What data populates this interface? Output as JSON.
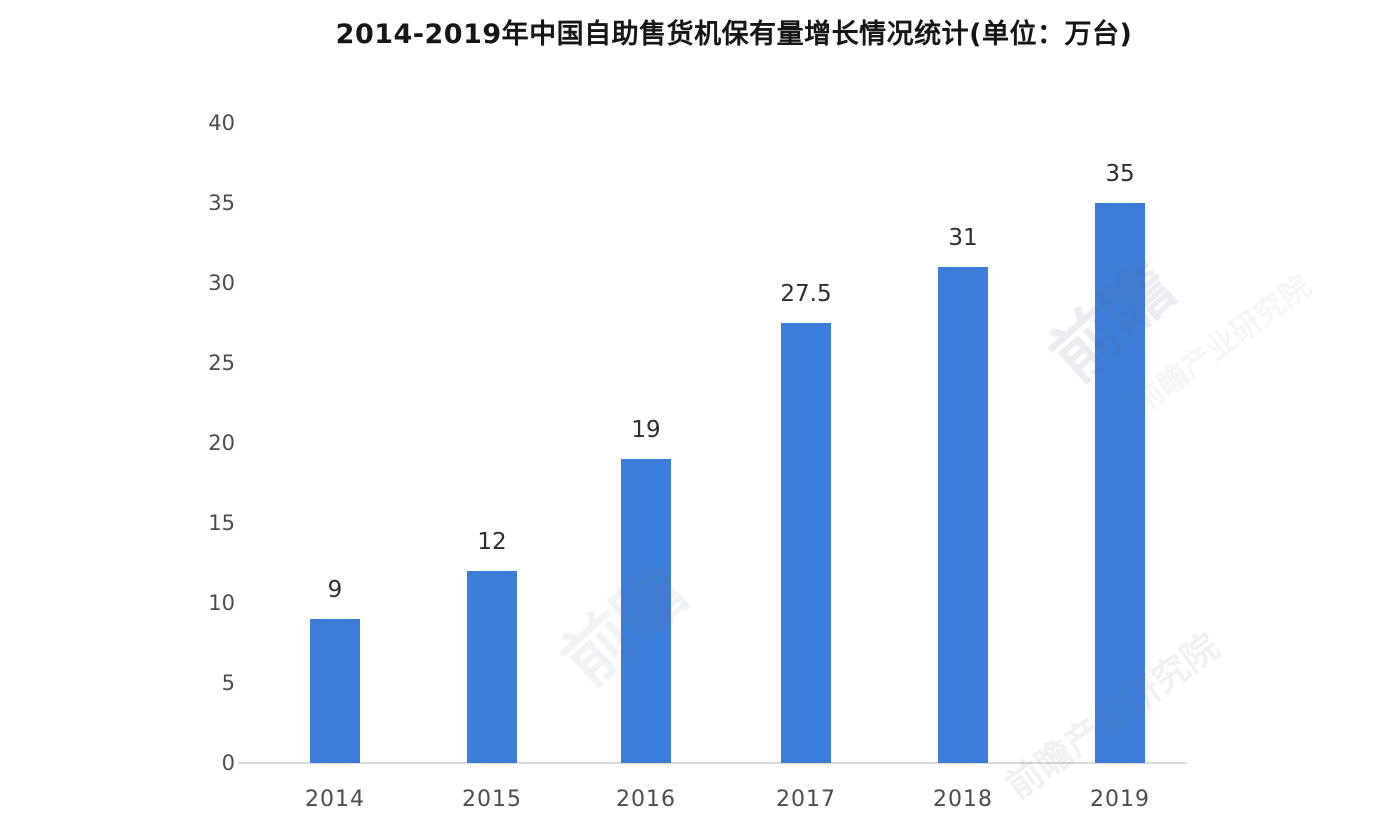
{
  "chart_data": {
    "type": "bar",
    "title": "2014-2019年中国自助售货机保有量增长情况统计(单位：万台)",
    "categories": [
      "2014",
      "2015",
      "2016",
      "2017",
      "2018",
      "2019"
    ],
    "values": [
      9,
      12,
      19,
      27.5,
      31,
      35
    ],
    "value_labels": [
      "9",
      "12",
      "19",
      "27.5",
      "31",
      "35"
    ],
    "xlabel": "",
    "ylabel": "",
    "ylim": [
      0,
      40
    ],
    "yticks": [
      0,
      5,
      10,
      15,
      20,
      25,
      30,
      35,
      40
    ],
    "grid": false,
    "legend": null,
    "unit": "万台",
    "bar_color": "#3b7dd8"
  },
  "colors": {
    "background": "#ffffff",
    "bar": "#3b7dd8",
    "axis_line": "#d9d9d9",
    "title_text": "#161616",
    "tick_text": "#4c4c4c",
    "value_text": "#2e2e2e"
  },
  "watermark": {
    "short_text": "前瞻",
    "long_text": "前瞻产业研究院"
  }
}
